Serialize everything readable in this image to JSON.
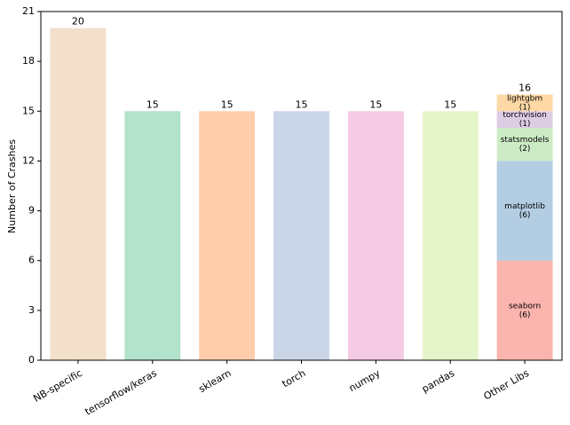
{
  "chart_data": {
    "type": "bar",
    "y_label": "Number of Crashes",
    "categories": [
      "NB-specific",
      "tensorflow/keras",
      "sklearn",
      "torch",
      "numpy",
      "pandas",
      "Other Libs"
    ],
    "values": [
      20,
      15,
      15,
      15,
      15,
      15,
      null
    ],
    "colors": [
      "#f2e0cb",
      "#b3e2cd",
      "#fdcdac",
      "#cbd5e8",
      "#f4cae4",
      "#e6f5c9",
      null
    ],
    "stack": {
      "total": 16,
      "segments": [
        {
          "name": "seaborn",
          "value": 6,
          "value_label": "(6)",
          "color": "#fbb4ae"
        },
        {
          "name": "matplotlib",
          "value": 6,
          "value_label": "(6)",
          "color": "#b3cde3"
        },
        {
          "name": "statsmodels",
          "value": 2,
          "value_label": "(2)",
          "color": "#ccebc5"
        },
        {
          "name": "torchvision",
          "value": 1,
          "value_label": "(1)",
          "color": "#decbe4"
        },
        {
          "name": "lightgbm",
          "value": 1,
          "value_label": "(1)",
          "color": "#fed9a6"
        }
      ]
    },
    "ylim": [
      0,
      21
    ],
    "yticks": [
      0,
      3,
      6,
      9,
      12,
      15,
      18,
      21
    ],
    "grid": false
  }
}
